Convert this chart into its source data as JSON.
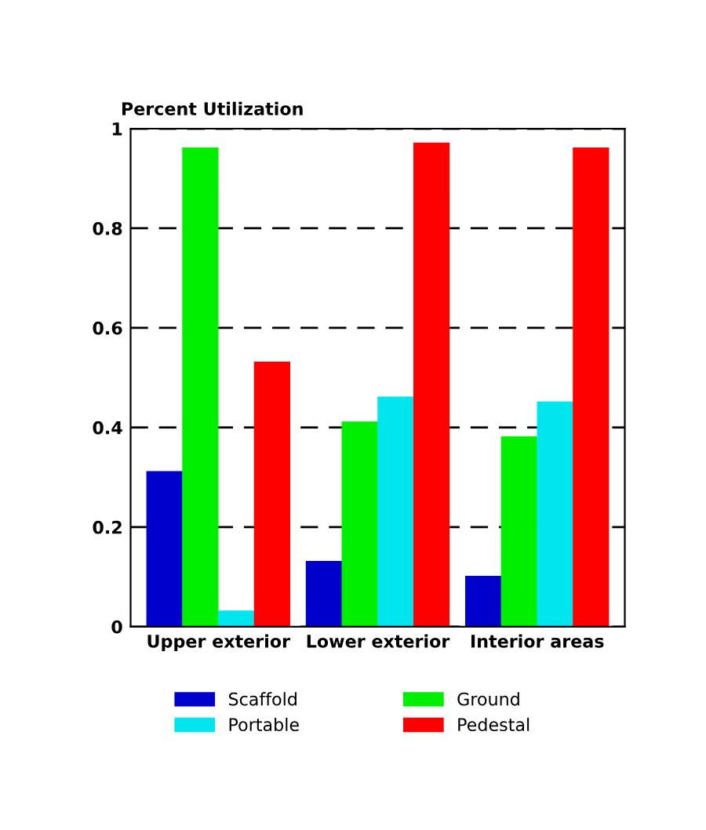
{
  "chart_data": {
    "type": "bar",
    "ylabel": "Percent Utilization",
    "categories": [
      "Upper exterior",
      "Lower exterior",
      "Interior areas"
    ],
    "series": [
      {
        "name": "Scaffold",
        "color": "#0000cc",
        "values": [
          0.31,
          0.13,
          0.1
        ]
      },
      {
        "name": "Ground",
        "color": "#00ee00",
        "values": [
          0.96,
          0.41,
          0.38
        ]
      },
      {
        "name": "Portable",
        "color": "#00e5ee",
        "values": [
          0.03,
          0.46,
          0.45
        ]
      },
      {
        "name": "Pedestal",
        "color": "#ff0000",
        "values": [
          0.53,
          0.97,
          0.96
        ]
      }
    ],
    "ylim": [
      0,
      1
    ],
    "yticks": [
      0,
      0.2,
      0.4,
      0.6,
      0.8,
      1
    ],
    "grid": "y",
    "legend": "bottom"
  }
}
